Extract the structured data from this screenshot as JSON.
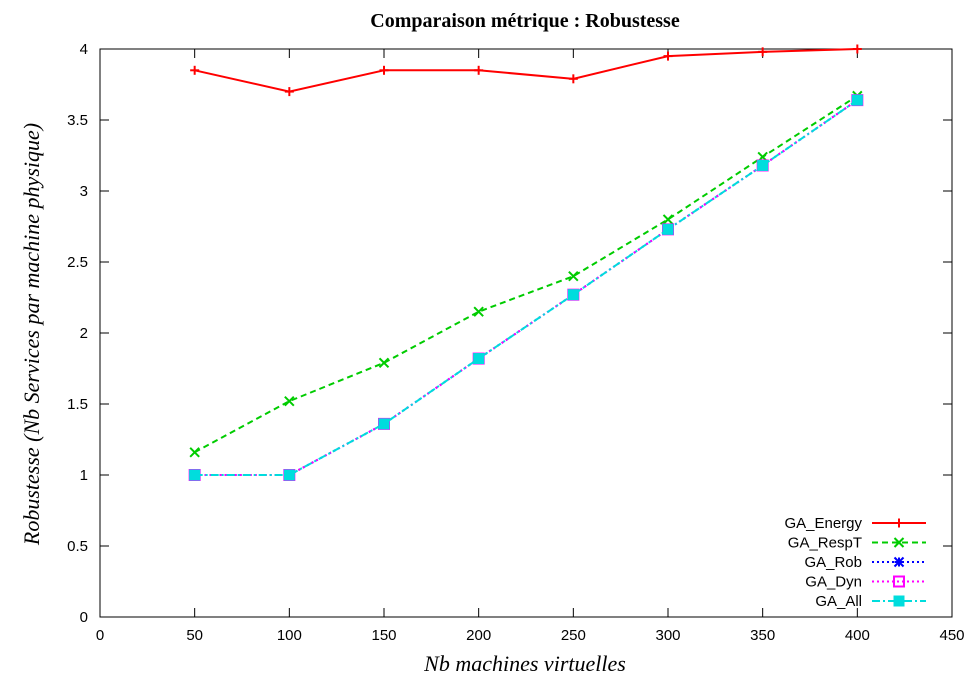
{
  "chart_data": {
    "type": "line",
    "title": "Comparaison métrique : Robustesse",
    "xlabel": "Nb machines virtuelles",
    "ylabel": "Robustesse (Nb Services par machine physique)",
    "xlim": [
      0,
      450
    ],
    "ylim": [
      0,
      4
    ],
    "xticks": [
      "0",
      "50",
      "100",
      "150",
      "200",
      "250",
      "300",
      "350",
      "400",
      "450"
    ],
    "yticks": [
      "0",
      "0.5",
      "1",
      "1.5",
      "2",
      "2.5",
      "3",
      "3.5",
      "4"
    ],
    "grid": false,
    "legend_position": "bottom-right",
    "x": [
      50,
      100,
      150,
      200,
      250,
      300,
      350,
      400
    ],
    "series": [
      {
        "name": "GA_Energy",
        "color": "#ff0000",
        "dash": "solid",
        "marker": "plus",
        "values": [
          3.85,
          3.7,
          3.85,
          3.85,
          3.79,
          3.95,
          3.98,
          4.0
        ]
      },
      {
        "name": "GA_RespT",
        "color": "#00cc00",
        "dash": "dashed",
        "marker": "cross",
        "values": [
          1.16,
          1.52,
          1.79,
          2.15,
          2.4,
          2.8,
          3.24,
          3.67
        ]
      },
      {
        "name": "GA_Rob",
        "color": "#0000ff",
        "dash": "dotted",
        "marker": "star",
        "values": [
          1.0,
          1.0,
          1.36,
          1.82,
          2.27,
          2.73,
          3.18,
          3.64
        ]
      },
      {
        "name": "GA_Dyn",
        "color": "#ff00ff",
        "dash": "dotted",
        "marker": "open-square",
        "values": [
          1.0,
          1.0,
          1.36,
          1.82,
          2.27,
          2.73,
          3.18,
          3.64
        ]
      },
      {
        "name": "GA_All",
        "color": "#00dddd",
        "dash": "dashdot",
        "marker": "filled-square",
        "values": [
          1.0,
          1.0,
          1.36,
          1.82,
          2.27,
          2.73,
          3.18,
          3.64
        ]
      }
    ]
  }
}
